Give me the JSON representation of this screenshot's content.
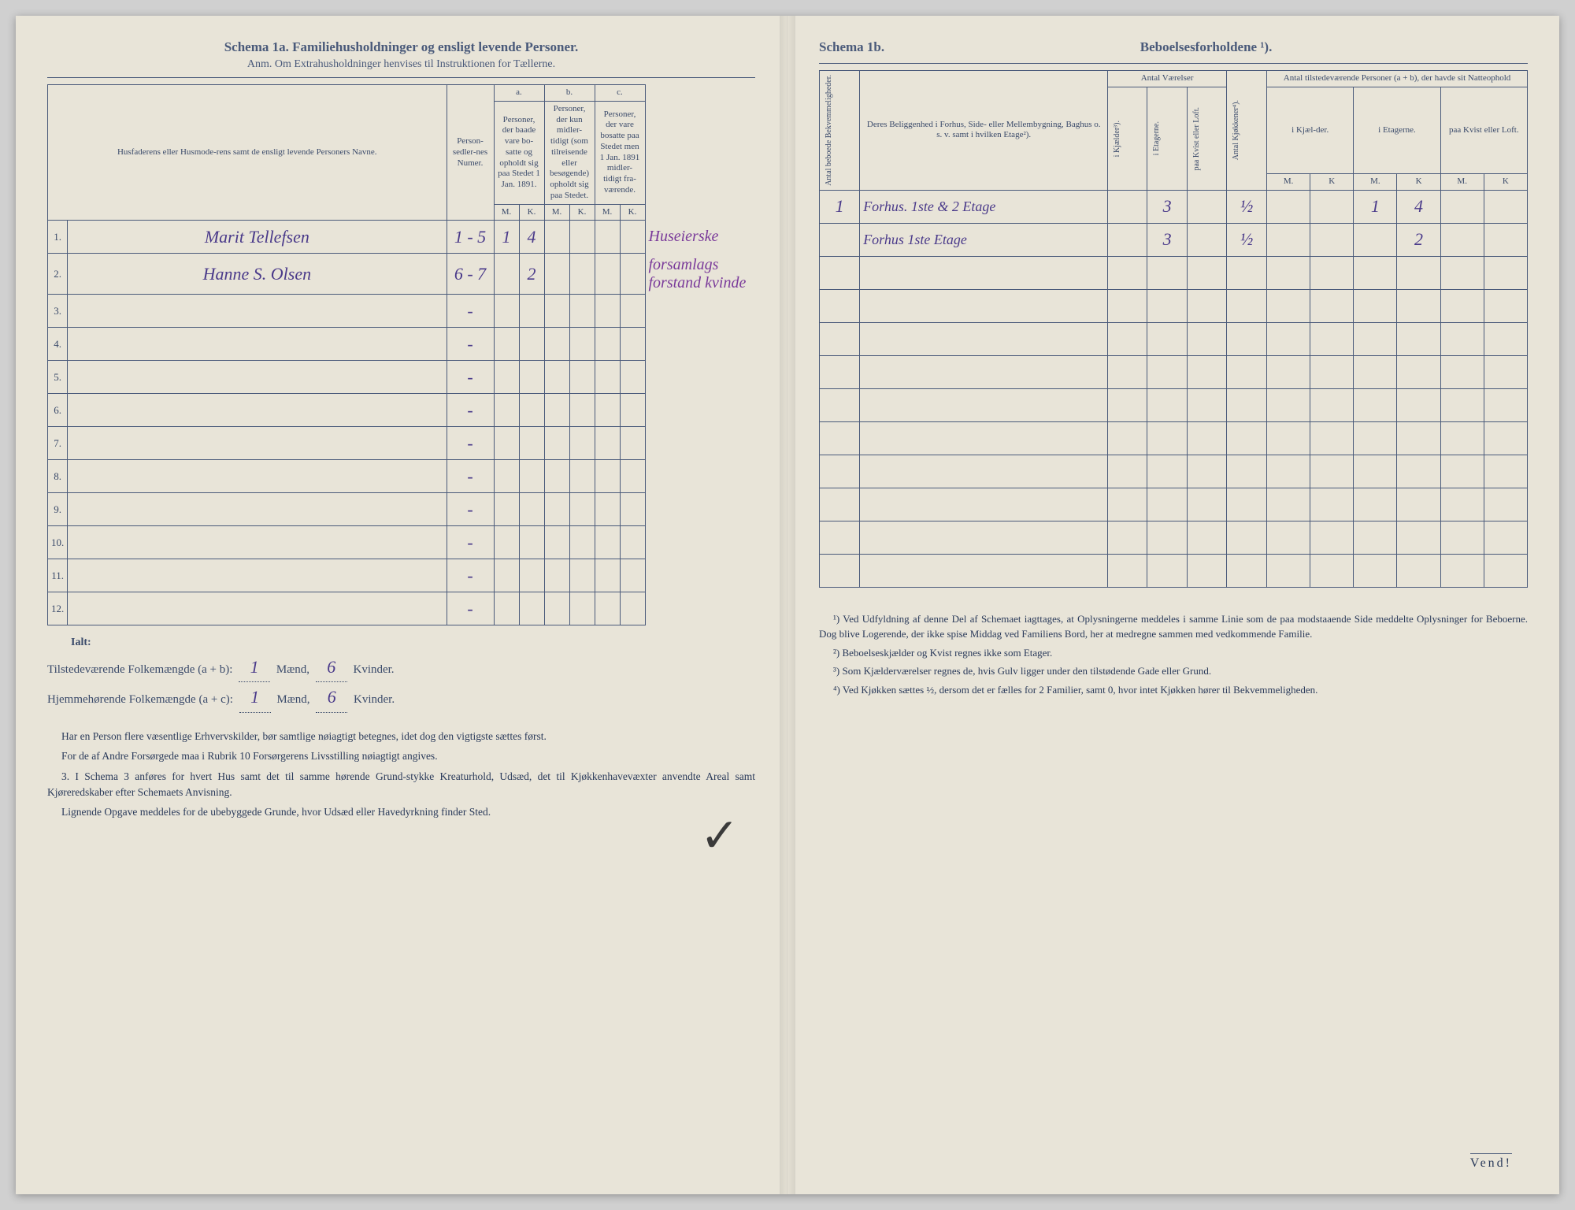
{
  "page_background": "#e8e4d8",
  "ink_color": "#4a5a7a",
  "handwriting_color": "#4a3a8a",
  "handwriting_purple": "#7a3a9a",
  "left": {
    "title": "Schema 1a.  Familiehusholdninger og ensligt levende Personer.",
    "subtitle": "Anm. Om Extrahusholdninger henvises til Instruktionen for Tællerne.",
    "col_names": {
      "names_header": "Husfaderens eller Husmode-rens samt de ensligt levende Personers Navne.",
      "person_num": "Person-sedler-nes Numer.",
      "group_a": "a.",
      "group_a_sub": "Personer, der baade vare bo-satte og opholdt sig paa Stedet 1 Jan. 1891.",
      "group_b": "b.",
      "group_b_sub": "Personer, der kun midler-tidigt (som tilreisende eller besøgende) opholdt sig paa Stedet.",
      "group_c": "c.",
      "group_c_sub": "Personer, der vare bosatte paa Stedet men 1 Jan. 1891 midler-tidigt fra-værende.",
      "M": "M.",
      "K": "K."
    },
    "rows": [
      {
        "n": "1.",
        "name": "Marit Tellefsen",
        "num": "1 - 5",
        "aM": "1",
        "aK": "4",
        "bM": "",
        "bK": "",
        "cM": "",
        "cK": "",
        "note": "Huseierske"
      },
      {
        "n": "2.",
        "name": "Hanne S. Olsen",
        "num": "6 - 7",
        "aM": "",
        "aK": "2",
        "bM": "",
        "bK": "",
        "cM": "",
        "cK": "",
        "note": "forsamlags forstand kvinde"
      },
      {
        "n": "3.",
        "name": "",
        "num": "-",
        "aM": "",
        "aK": "",
        "bM": "",
        "bK": "",
        "cM": "",
        "cK": "",
        "note": ""
      },
      {
        "n": "4.",
        "name": "",
        "num": "-",
        "aM": "",
        "aK": "",
        "bM": "",
        "bK": "",
        "cM": "",
        "cK": "",
        "note": ""
      },
      {
        "n": "5.",
        "name": "",
        "num": "-",
        "aM": "",
        "aK": "",
        "bM": "",
        "bK": "",
        "cM": "",
        "cK": "",
        "note": ""
      },
      {
        "n": "6.",
        "name": "",
        "num": "-",
        "aM": "",
        "aK": "",
        "bM": "",
        "bK": "",
        "cM": "",
        "cK": "",
        "note": ""
      },
      {
        "n": "7.",
        "name": "",
        "num": "-",
        "aM": "",
        "aK": "",
        "bM": "",
        "bK": "",
        "cM": "",
        "cK": "",
        "note": ""
      },
      {
        "n": "8.",
        "name": "",
        "num": "-",
        "aM": "",
        "aK": "",
        "bM": "",
        "bK": "",
        "cM": "",
        "cK": "",
        "note": ""
      },
      {
        "n": "9.",
        "name": "",
        "num": "-",
        "aM": "",
        "aK": "",
        "bM": "",
        "bK": "",
        "cM": "",
        "cK": "",
        "note": ""
      },
      {
        "n": "10.",
        "name": "",
        "num": "-",
        "aM": "",
        "aK": "",
        "bM": "",
        "bK": "",
        "cM": "",
        "cK": "",
        "note": ""
      },
      {
        "n": "11.",
        "name": "",
        "num": "-",
        "aM": "",
        "aK": "",
        "bM": "",
        "bK": "",
        "cM": "",
        "cK": "",
        "note": ""
      },
      {
        "n": "12.",
        "name": "",
        "num": "-",
        "aM": "",
        "aK": "",
        "bM": "",
        "bK": "",
        "cM": "",
        "cK": "",
        "note": ""
      }
    ],
    "totals": {
      "ialt": "Ialt:",
      "line1_label": "Tilstedeværende Folkemængde (a + b):",
      "line2_label": "Hjemmehørende Folkemængde (a + c):",
      "maend": "Mænd,",
      "kvinder": "Kvinder.",
      "v1m": "1",
      "v1k": "6",
      "v2m": "1",
      "v2k": "6"
    },
    "para1": "Har en Person flere væsentlige Erhvervskilder, bør samtlige nøiagtigt betegnes, idet dog den vigtigste sættes først.",
    "para2": "For de af Andre Forsørgede maa i Rubrik 10 Forsørgerens Livsstilling nøiagtigt angives.",
    "para3": "3. I Schema 3 anføres for hvert Hus samt det til samme hørende Grund-stykke Kreaturhold, Udsæd, det til Kjøkkenhavevæxter anvendte Areal samt Kjøreredskaber efter Schemaets Anvisning.",
    "para4": "Lignende Opgave meddeles for de ubebyggede Grunde, hvor Udsæd eller Havedyrkning finder Sted."
  },
  "right": {
    "title_a": "Schema 1b.",
    "title_b": "Beboelsesforholdene ¹).",
    "col_names": {
      "bekv": "Antal beboede Bekvemmeligheder.",
      "belig": "Deres Beliggenhed i Forhus, Side- eller Mellembygning, Baghus o. s. v. samt i hvilken Etage²).",
      "antal_vaer": "Antal Værelser",
      "kjælder": "i Kjælder³).",
      "etagerne": "i Etagerne.",
      "kvist": "paa Kvist eller Loft.",
      "kjokken": "Antal Kjøkkener⁴).",
      "tilstede": "Antal tilstedeværende Personer (a + b), der havde sit Natteophold",
      "iKjael": "i Kjæl-der.",
      "iEtag": "i Etagerne.",
      "paaKvist": "paa Kvist eller Loft.",
      "M": "M.",
      "K": "K"
    },
    "rows": [
      {
        "bekv": "1",
        "belig": "Forhus. 1ste & 2 Etage",
        "kj": "",
        "et": "3",
        "kv": "",
        "kk": "½",
        "km": "",
        "kk2": "",
        "em": "1",
        "ek": "4",
        "lm": "",
        "lk": ""
      },
      {
        "bekv": "",
        "belig": "Forhus 1ste Etage",
        "kj": "",
        "et": "3",
        "kv": "",
        "kk": "½",
        "km": "",
        "kk2": "",
        "em": "",
        "ek": "2",
        "lm": "",
        "lk": ""
      },
      {
        "bekv": "",
        "belig": "",
        "kj": "",
        "et": "",
        "kv": "",
        "kk": "",
        "km": "",
        "kk2": "",
        "em": "",
        "ek": "",
        "lm": "",
        "lk": ""
      },
      {
        "bekv": "",
        "belig": "",
        "kj": "",
        "et": "",
        "kv": "",
        "kk": "",
        "km": "",
        "kk2": "",
        "em": "",
        "ek": "",
        "lm": "",
        "lk": ""
      },
      {
        "bekv": "",
        "belig": "",
        "kj": "",
        "et": "",
        "kv": "",
        "kk": "",
        "km": "",
        "kk2": "",
        "em": "",
        "ek": "",
        "lm": "",
        "lk": ""
      },
      {
        "bekv": "",
        "belig": "",
        "kj": "",
        "et": "",
        "kv": "",
        "kk": "",
        "km": "",
        "kk2": "",
        "em": "",
        "ek": "",
        "lm": "",
        "lk": ""
      },
      {
        "bekv": "",
        "belig": "",
        "kj": "",
        "et": "",
        "kv": "",
        "kk": "",
        "km": "",
        "kk2": "",
        "em": "",
        "ek": "",
        "lm": "",
        "lk": ""
      },
      {
        "bekv": "",
        "belig": "",
        "kj": "",
        "et": "",
        "kv": "",
        "kk": "",
        "km": "",
        "kk2": "",
        "em": "",
        "ek": "",
        "lm": "",
        "lk": ""
      },
      {
        "bekv": "",
        "belig": "",
        "kj": "",
        "et": "",
        "kv": "",
        "kk": "",
        "km": "",
        "kk2": "",
        "em": "",
        "ek": "",
        "lm": "",
        "lk": ""
      },
      {
        "bekv": "",
        "belig": "",
        "kj": "",
        "et": "",
        "kv": "",
        "kk": "",
        "km": "",
        "kk2": "",
        "em": "",
        "ek": "",
        "lm": "",
        "lk": ""
      },
      {
        "bekv": "",
        "belig": "",
        "kj": "",
        "et": "",
        "kv": "",
        "kk": "",
        "km": "",
        "kk2": "",
        "em": "",
        "ek": "",
        "lm": "",
        "lk": ""
      },
      {
        "bekv": "",
        "belig": "",
        "kj": "",
        "et": "",
        "kv": "",
        "kk": "",
        "km": "",
        "kk2": "",
        "em": "",
        "ek": "",
        "lm": "",
        "lk": ""
      }
    ],
    "fn1": "¹) Ved Udfyldning af denne Del af Schemaet iagttages, at Oplysningerne meddeles i samme Linie som de paa modstaaende Side meddelte Oplysninger for Beboerne. Dog blive Logerende, der ikke spise Middag ved Familiens Bord, her at medregne sammen med vedkommende Familie.",
    "fn2": "²) Beboelseskjælder og Kvist regnes ikke som Etager.",
    "fn3": "³) Som Kjælderværelser regnes de, hvis Gulv ligger under den tilstødende Gade eller Grund.",
    "fn4": "⁴) Ved Kjøkken sættes ½, dersom det er fælles for 2 Familier, samt 0, hvor intet Kjøkken hører til Bekvemmeligheden.",
    "vend": "Vend!"
  }
}
